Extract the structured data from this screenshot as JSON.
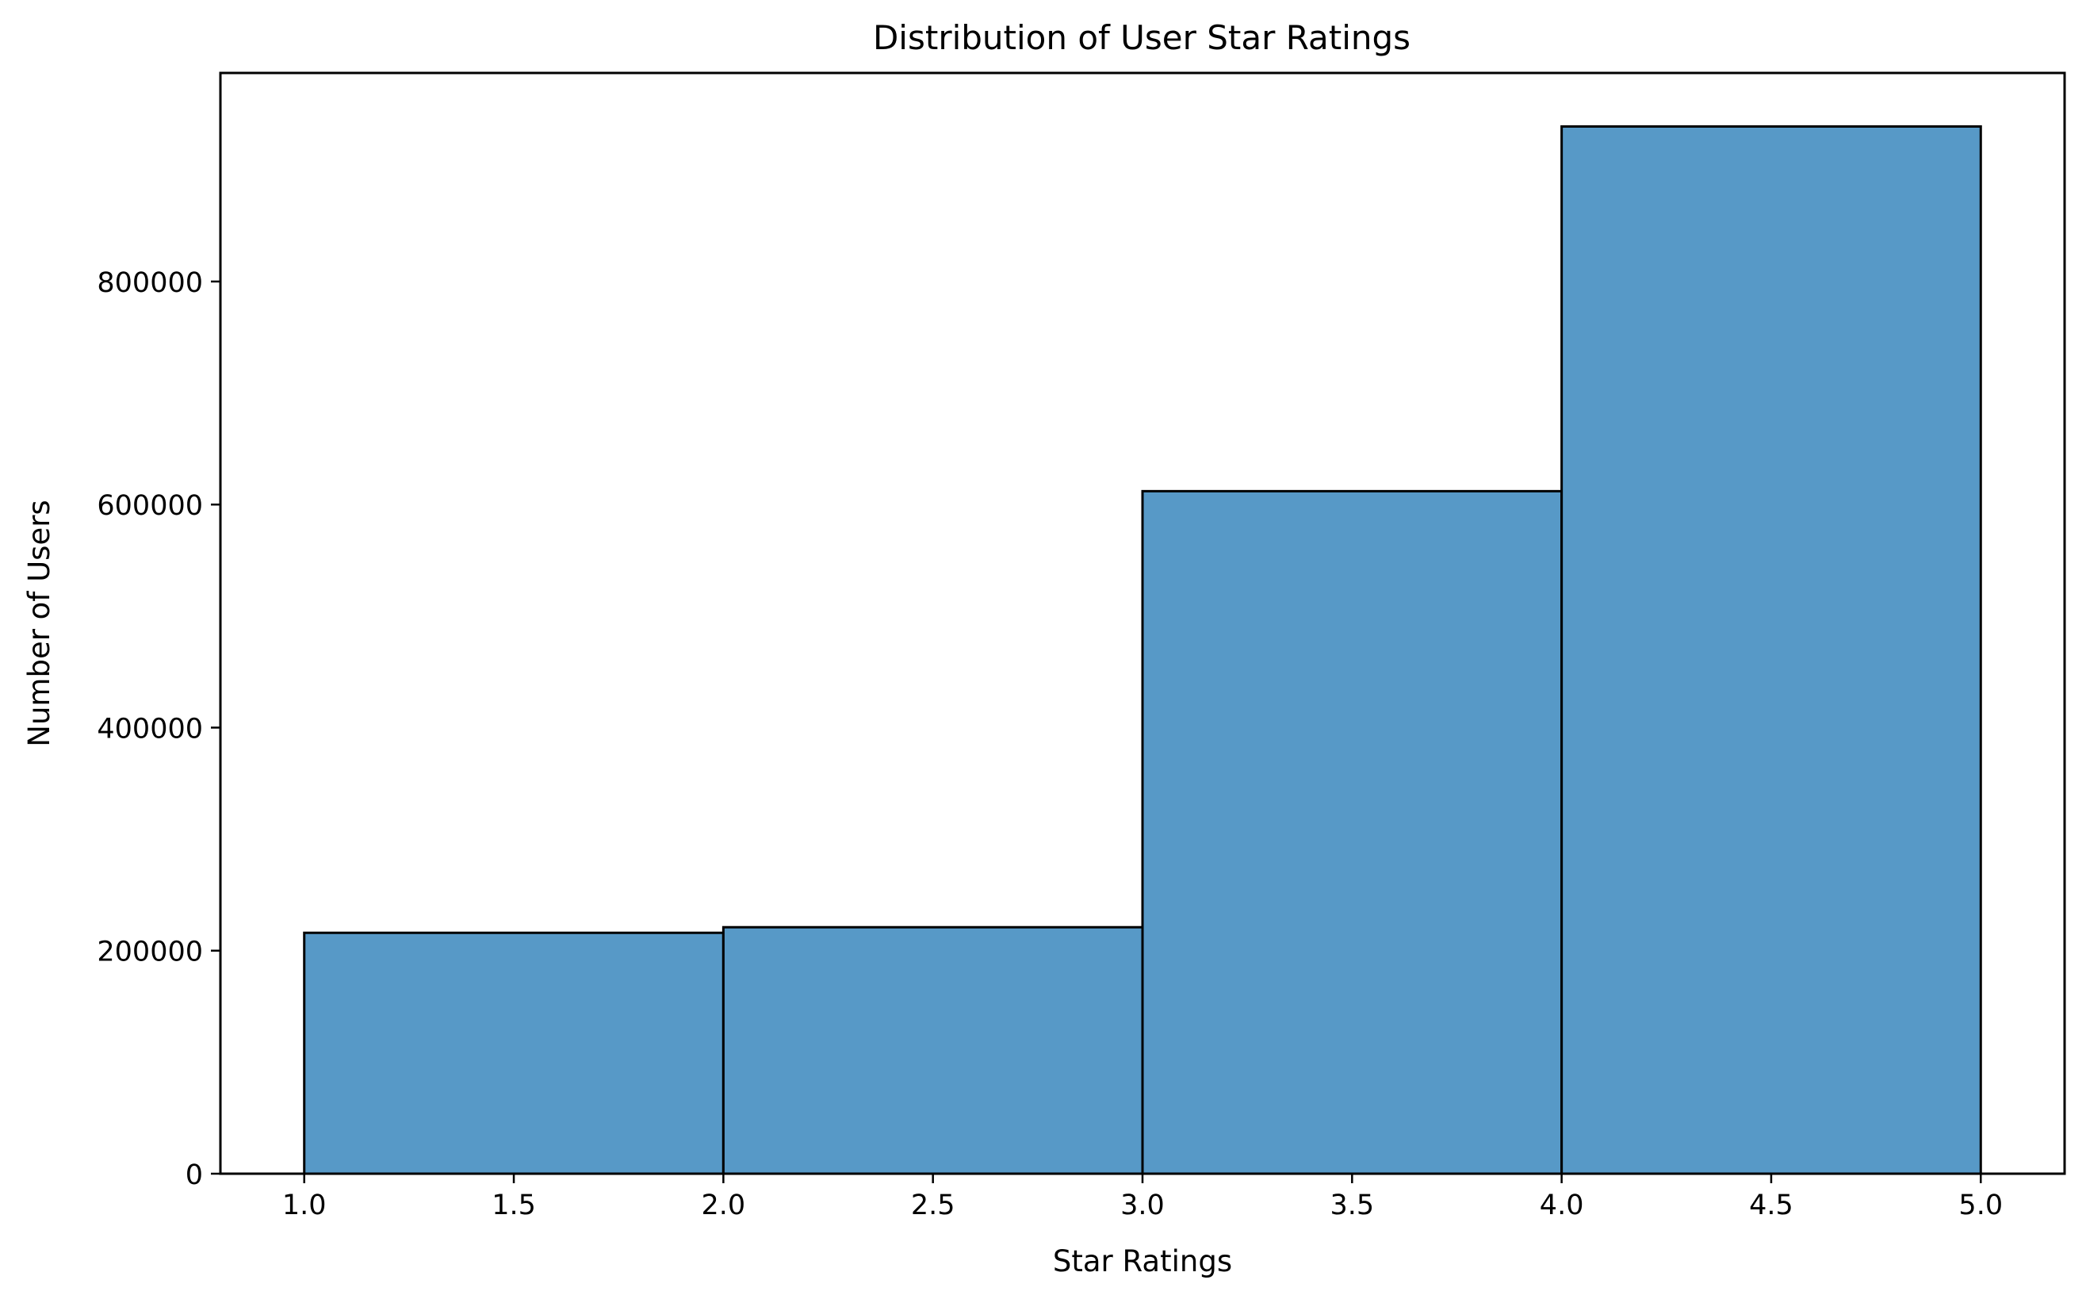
{
  "chart_data": {
    "type": "bar",
    "title": "Distribution of User Star Ratings",
    "xlabel": "Star Ratings",
    "ylabel": "Number of Users",
    "bins": [
      {
        "x0": 1.0,
        "x1": 2.0,
        "value": 216000
      },
      {
        "x0": 2.0,
        "x1": 3.0,
        "value": 221000
      },
      {
        "x0": 3.0,
        "x1": 4.0,
        "value": 612000
      },
      {
        "x0": 4.0,
        "x1": 5.0,
        "value": 939000
      }
    ],
    "xlim": [
      0.8,
      5.2
    ],
    "ylim": [
      0,
      987000
    ],
    "xticks": [
      1.0,
      1.5,
      2.0,
      2.5,
      3.0,
      3.5,
      4.0,
      4.5,
      5.0
    ],
    "xtick_labels": [
      "1.0",
      "1.5",
      "2.0",
      "2.5",
      "3.0",
      "3.5",
      "4.0",
      "4.5",
      "5.0"
    ],
    "yticks": [
      0,
      200000,
      400000,
      600000,
      800000
    ],
    "ytick_labels": [
      "0",
      "200000",
      "400000",
      "600000",
      "800000"
    ],
    "grid": false,
    "colors": {
      "bar_fill": "#5799c7",
      "bar_edge": "#000000",
      "axis": "#000000"
    }
  }
}
